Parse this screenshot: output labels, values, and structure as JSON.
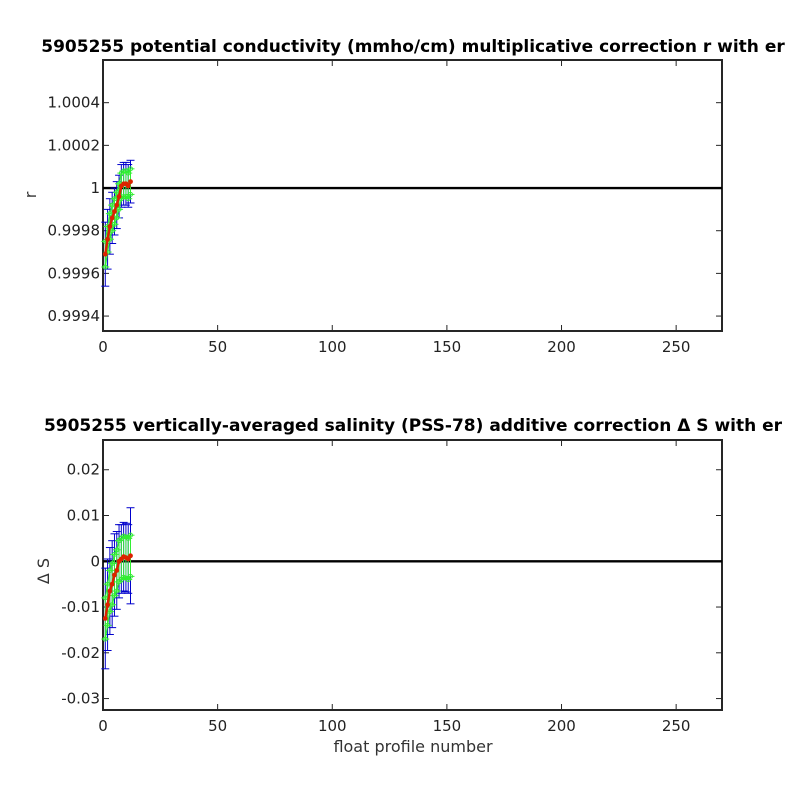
{
  "colors": {
    "error_r_blue": "#0000cc",
    "error_green": "#33ee33",
    "series_red": "#dd2200",
    "zero_line": "#000000"
  },
  "chart_data": [
    {
      "type": "line",
      "title": "5905255 potential conductivity (mmho/cm) multiplicative correction r with er",
      "xlabel": "",
      "ylabel": "r",
      "xlim": [
        0,
        270
      ],
      "ylim": [
        0.99933,
        1.0006
      ],
      "xticks": [
        0,
        50,
        100,
        150,
        200,
        250
      ],
      "xtick_labels": [
        "0",
        "50",
        "100",
        "150",
        "200",
        "250"
      ],
      "yticks": [
        0.9994,
        0.9996,
        0.9998,
        1.0,
        1.0002,
        1.0004
      ],
      "ytick_labels": [
        "0.9994",
        "0.9996",
        "0.9998",
        "1",
        "1.0002",
        "1.0004"
      ],
      "reference_line": 1.0,
      "x": [
        1,
        2,
        3,
        4,
        5,
        6,
        7,
        8,
        9,
        10,
        11,
        12
      ],
      "series": [
        {
          "values": [
            0.99969,
            0.99976,
            0.99982,
            0.99986,
            0.99989,
            0.99992,
            0.99996,
            1.00001,
            1.00002,
            1.00002,
            1.00001,
            1.00003
          ],
          "err_blue": [
            0.00015,
            0.00014,
            0.00013,
            0.00012,
            0.00011,
            0.00011,
            0.0001,
            0.0001,
            0.0001,
            0.0001,
            0.0001,
            0.0001
          ],
          "err_green": [
            6e-05,
            6e-05,
            6e-05,
            6e-05,
            6e-05,
            6e-05,
            6e-05,
            6e-05,
            6e-05,
            6e-05,
            6e-05,
            6e-05
          ]
        }
      ]
    },
    {
      "type": "line",
      "title": "5905255 vertically-averaged salinity (PSS-78) additive correction Δ S with er",
      "xlabel": "float profile number",
      "ylabel": "Δ S",
      "xlim": [
        0,
        270
      ],
      "ylim": [
        -0.0325,
        0.0265
      ],
      "xticks": [
        0,
        50,
        100,
        150,
        200,
        250
      ],
      "xtick_labels": [
        "0",
        "50",
        "100",
        "150",
        "200",
        "250"
      ],
      "yticks": [
        -0.03,
        -0.02,
        -0.01,
        0,
        0.01,
        0.02
      ],
      "ytick_labels": [
        "-0.03",
        "-0.02",
        "-0.01",
        "0",
        "0.01",
        "0.02"
      ],
      "reference_line": 0,
      "x": [
        1,
        2,
        3,
        4,
        5,
        6,
        7,
        8,
        9,
        10,
        11,
        12
      ],
      "series": [
        {
          "values": [
            -0.0125,
            -0.0095,
            -0.0065,
            -0.005,
            -0.003,
            -0.002,
            0.0,
            0.0005,
            0.001,
            0.0008,
            0.0005,
            0.0012
          ],
          "err_blue": [
            0.011,
            0.01,
            0.0095,
            0.0095,
            0.009,
            0.0085,
            0.008,
            0.0075,
            0.0075,
            0.0075,
            0.0075,
            0.0105
          ],
          "err_green": [
            0.0045,
            0.0045,
            0.0045,
            0.0045,
            0.0045,
            0.0045,
            0.0045,
            0.0045,
            0.0045,
            0.0045,
            0.0045,
            0.0045
          ]
        }
      ]
    }
  ]
}
